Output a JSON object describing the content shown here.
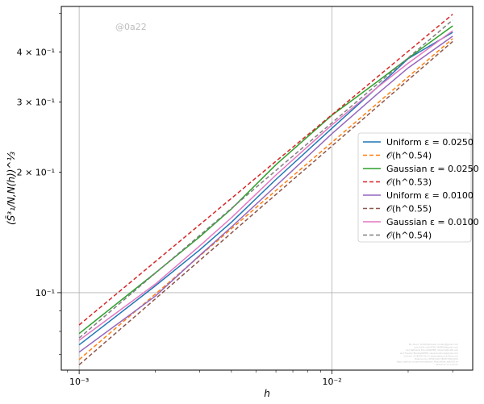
{
  "chart_data": {
    "type": "line",
    "xscale": "log",
    "yscale": "log",
    "xlabel": "h",
    "ylabel": "(S̄³₁/N,N(h))^⅓",
    "xlim": [
      0.00085,
      0.036
    ],
    "ylim": [
      0.064,
      0.52
    ],
    "grid": "major",
    "legend_position": "center-right",
    "x_ticks": [
      {
        "value": 0.001,
        "label": "10⁻³"
      },
      {
        "value": 0.01,
        "label": "10⁻²"
      }
    ],
    "y_ticks": [
      {
        "value": 0.1,
        "label": "10⁻¹"
      },
      {
        "value": 0.2,
        "label": "2 × 10⁻¹"
      },
      {
        "value": 0.3,
        "label": "3 × 10⁻¹"
      },
      {
        "value": 0.4,
        "label": "4 × 10⁻¹"
      }
    ],
    "series": [
      {
        "name": "Uniform ε = 0.0250",
        "color": "#1f77b4",
        "style": "solid",
        "x": [
          0.001,
          0.002,
          0.003,
          0.004,
          0.006,
          0.01,
          0.015,
          0.02,
          0.03
        ],
        "y": [
          0.074,
          0.104,
          0.128,
          0.15,
          0.192,
          0.258,
          0.325,
          0.385,
          0.448
        ]
      },
      {
        "name": "𝒪(h^0.54)",
        "color": "#ff7f0e",
        "style": "dashed",
        "x": [
          0.001,
          0.03
        ],
        "y": [
          0.068,
          0.432
        ]
      },
      {
        "name": "Gaussian ε = 0.0250",
        "color": "#2ca02c",
        "style": "solid",
        "x": [
          0.001,
          0.002,
          0.003,
          0.004,
          0.006,
          0.01,
          0.015,
          0.02,
          0.03
        ],
        "y": [
          0.079,
          0.112,
          0.138,
          0.162,
          0.209,
          0.278,
          0.336,
          0.386,
          0.465
        ]
      },
      {
        "name": "𝒪(h^0.53)",
        "color": "#d62728",
        "style": "dashed",
        "x": [
          0.001,
          0.03
        ],
        "y": [
          0.083,
          0.497
        ]
      },
      {
        "name": "Uniform ε = 0.0100",
        "color": "#9467bd",
        "style": "solid",
        "x": [
          0.001,
          0.002,
          0.003,
          0.004,
          0.006,
          0.01,
          0.015,
          0.02,
          0.03
        ],
        "y": [
          0.071,
          0.098,
          0.124,
          0.146,
          0.185,
          0.25,
          0.313,
          0.365,
          0.438
        ]
      },
      {
        "name": "𝒪(h^0.55)",
        "color": "#8c564b",
        "style": "dashed",
        "x": [
          0.001,
          0.03
        ],
        "y": [
          0.066,
          0.425
        ]
      },
      {
        "name": "Gaussian ε = 0.0100",
        "color": "#e377c2",
        "style": "solid",
        "x": [
          0.001,
          0.002,
          0.003,
          0.004,
          0.006,
          0.01,
          0.015,
          0.02,
          0.03
        ],
        "y": [
          0.076,
          0.105,
          0.131,
          0.154,
          0.197,
          0.263,
          0.325,
          0.375,
          0.452
        ]
      },
      {
        "name": "𝒪(h^0.54)",
        "color": "#7f7f7f",
        "style": "dashed",
        "x": [
          0.001,
          0.03
        ],
        "y": [
          0.077,
          0.481
        ]
      }
    ],
    "watermark": "@0a22",
    "fineprint_lines": [
      "By: Ana K. Smith@stripsim  contact@gmail.com",
      "and (AAA) rustid7IHC  (PAPER)@gmail.com",
      "and Nathaniel Bonnel(PAPER)  nhpsims@math.edu",
      "and Franklin Blanks(PAPER)  cleversolutions@gmail.com",
      "Licence: CC-BY-NC-SA  (c) papers@ezconsulting.com",
      "Data source:  SPDD DAQ SELECTION  2021",
      "https://github.com/pernermathe/w_fillplot/data_spkrk20.sh",
      "reference: xx.xxx/xxx"
    ]
  }
}
